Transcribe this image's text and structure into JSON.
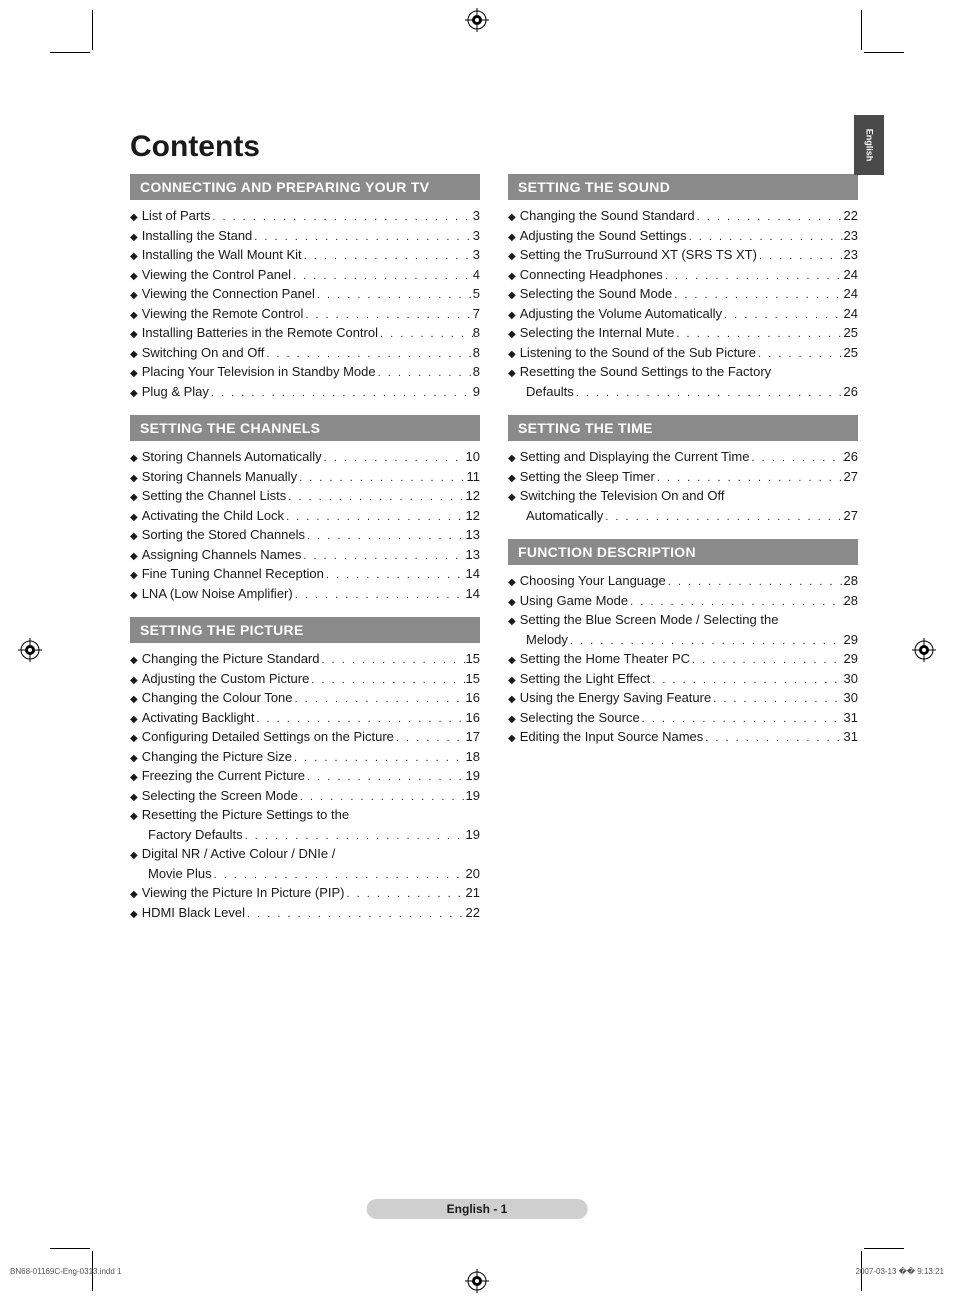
{
  "title": "Contents",
  "lang_tab": "English",
  "footer": "English - 1",
  "meta_left": "BN68-01169C-Eng-0313.indd   1",
  "meta_right": "2007-03-13   �� 9:13:21",
  "colors": {
    "section_header_bg": "#8a8a8a",
    "section_header_fg": "#ffffff",
    "text": "#1a1a1a",
    "lang_tab_bg": "#4a4a4a",
    "footer_pill_bg": "#cfcfcf",
    "page_bg": "#ffffff"
  },
  "typography": {
    "title_fontsize_pt": 22,
    "section_header_fontsize_pt": 11,
    "toc_fontsize_pt": 10,
    "footer_fontsize_pt": 9
  },
  "left_col": [
    {
      "header": "CONNECTING AND PREPARING YOUR TV",
      "items": [
        {
          "label": "List of Parts",
          "page": "3"
        },
        {
          "label": "Installing the Stand",
          "page": "3"
        },
        {
          "label": "Installing the Wall Mount Kit",
          "page": "3"
        },
        {
          "label": "Viewing the Control Panel",
          "page": "4"
        },
        {
          "label": "Viewing the Connection Panel",
          "page": "5"
        },
        {
          "label": "Viewing the Remote Control",
          "page": "7"
        },
        {
          "label": "Installing Batteries in the Remote Control",
          "page": "8"
        },
        {
          "label": "Switching On and Off",
          "page": "8"
        },
        {
          "label": "Placing Your Television in Standby Mode",
          "page": "8"
        },
        {
          "label": "Plug & Play",
          "page": "9"
        }
      ]
    },
    {
      "header": "SETTING THE CHANNELS",
      "items": [
        {
          "label": "Storing Channels Automatically",
          "page": "10"
        },
        {
          "label": "Storing Channels Manually",
          "page": "11"
        },
        {
          "label": "Setting the Channel Lists",
          "page": "12"
        },
        {
          "label": "Activating the Child Lock",
          "page": "12"
        },
        {
          "label": "Sorting the Stored Channels",
          "page": "13"
        },
        {
          "label": "Assigning Channels Names",
          "page": "13"
        },
        {
          "label": "Fine Tuning Channel Reception",
          "page": "14"
        },
        {
          "label": "LNA (Low Noise Amplifier)",
          "page": "14"
        }
      ]
    },
    {
      "header": "SETTING THE PICTURE",
      "items": [
        {
          "label": "Changing the Picture Standard",
          "page": "15"
        },
        {
          "label": "Adjusting the Custom Picture",
          "page": "15"
        },
        {
          "label": "Changing the Colour Tone",
          "page": "16"
        },
        {
          "label": "Activating Backlight",
          "page": "16"
        },
        {
          "label": "Configuring Detailed Settings on the Picture",
          "page": "17"
        },
        {
          "label": "Changing the Picture Size",
          "page": "18"
        },
        {
          "label": "Freezing the Current Picture",
          "page": "19"
        },
        {
          "label": "Selecting the Screen Mode",
          "page": "19"
        },
        {
          "label": "Resetting the Picture Settings to the",
          "cont": "Factory Defaults",
          "page": "19"
        },
        {
          "label": "Digital NR / Active Colour / DNIe /",
          "cont": "Movie Plus",
          "page": "20"
        },
        {
          "label": "Viewing the Picture In Picture (PIP)",
          "page": "21"
        },
        {
          "label": "HDMI Black Level",
          "page": "22"
        }
      ]
    }
  ],
  "right_col": [
    {
      "header": "SETTING THE SOUND",
      "items": [
        {
          "label": "Changing the Sound Standard",
          "page": "22"
        },
        {
          "label": "Adjusting the Sound Settings",
          "page": "23"
        },
        {
          "label": "Setting the TruSurround XT (SRS TS XT)",
          "page": "23"
        },
        {
          "label": "Connecting Headphones",
          "page": "24"
        },
        {
          "label": "Selecting the Sound Mode",
          "page": "24"
        },
        {
          "label": "Adjusting the Volume Automatically",
          "page": "24"
        },
        {
          "label": "Selecting the Internal Mute",
          "page": "25"
        },
        {
          "label": "Listening to the Sound of the Sub Picture",
          "page": "25"
        },
        {
          "label": "Resetting the Sound Settings to the Factory",
          "cont": "Defaults",
          "page": "26"
        }
      ]
    },
    {
      "header": "SETTING THE TIME",
      "items": [
        {
          "label": "Setting and Displaying the Current Time",
          "page": "26"
        },
        {
          "label": "Setting the Sleep Timer",
          "page": "27"
        },
        {
          "label": "Switching the Television On and Off",
          "cont": "Automatically",
          "page": "27"
        }
      ]
    },
    {
      "header": "FUNCTION DESCRIPTION",
      "items": [
        {
          "label": "Choosing Your Language",
          "page": "28"
        },
        {
          "label": "Using Game Mode",
          "page": "28"
        },
        {
          "label": "Setting the Blue Screen Mode / Selecting the",
          "cont": "Melody",
          "page": "29"
        },
        {
          "label": "Setting the Home Theater PC",
          "page": "29"
        },
        {
          "label": "Setting the Light Effect",
          "page": "30"
        },
        {
          "label": "Using the Energy Saving Feature",
          "page": "30"
        },
        {
          "label": "Selecting the Source",
          "page": "31"
        },
        {
          "label": "Editing the Input Source Names",
          "page": "31"
        }
      ]
    }
  ]
}
